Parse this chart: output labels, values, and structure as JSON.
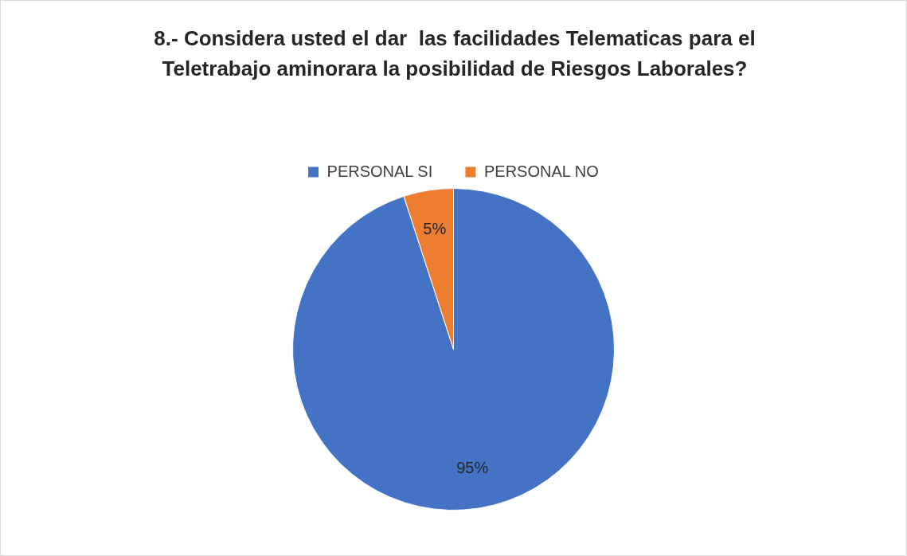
{
  "chart_data": {
    "type": "pie",
    "title": "8.- Considera usted el dar  las facilidades Telematicas para el Teletrabajo aminorara la posibilidad de Riesgos Laborales?",
    "categories": [
      "PERSONAL SI",
      "PERSONAL NO"
    ],
    "values": [
      95,
      5
    ],
    "colors": [
      "#4472c4",
      "#ed7d31"
    ],
    "value_labels": [
      "95%",
      "5%"
    ],
    "legend": "top"
  }
}
